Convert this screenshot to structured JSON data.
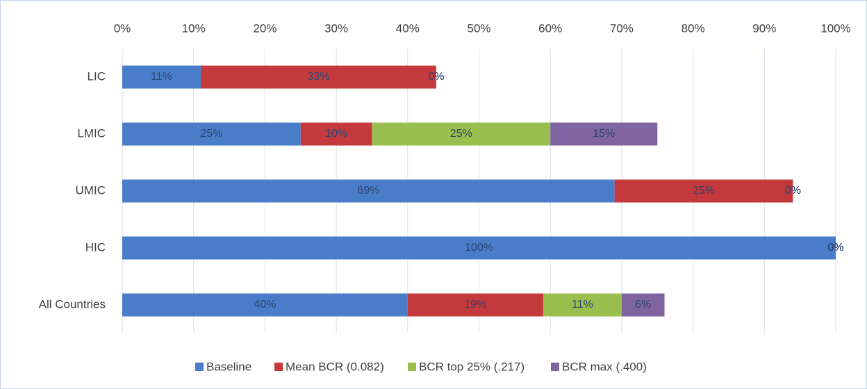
{
  "chart_data": {
    "type": "stacked-bar-horizontal",
    "categories": [
      "LIC",
      "LMIC",
      "UMIC",
      "HIC",
      "All Countries"
    ],
    "series": [
      {
        "name": "Baseline",
        "color": "#4a7dc9",
        "values": [
          11,
          25,
          69,
          100,
          40
        ],
        "value_labels": [
          "11%",
          "25%",
          "69%",
          "100%",
          "40%"
        ]
      },
      {
        "name": "Mean BCR (0.082)",
        "color": "#c43a3c",
        "values": [
          33,
          10,
          25,
          0,
          19
        ],
        "value_labels": [
          "33%",
          "10%",
          "25%",
          "0%",
          "19%"
        ]
      },
      {
        "name": "BCR top 25% (.217)",
        "color": "#9bbf4f",
        "values": [
          0,
          25,
          0,
          0,
          11
        ],
        "value_labels": [
          "0%",
          "25%",
          "0%",
          "0%",
          "11%"
        ]
      },
      {
        "name": "BCR max (.400)",
        "color": "#8064a2",
        "values": [
          0,
          15,
          0,
          0,
          6
        ],
        "value_labels": [
          "0%",
          "15%",
          "0%",
          "0%",
          "6%"
        ]
      }
    ],
    "xlim": [
      0,
      100
    ],
    "xticks": [
      {
        "value": 0,
        "label": "0%"
      },
      {
        "value": 10,
        "label": "10%"
      },
      {
        "value": 20,
        "label": "20%"
      },
      {
        "value": 30,
        "label": "30%"
      },
      {
        "value": 40,
        "label": "40%"
      },
      {
        "value": 50,
        "label": "50%"
      },
      {
        "value": 60,
        "label": "60%"
      },
      {
        "value": 70,
        "label": "70%"
      },
      {
        "value": 80,
        "label": "80%"
      },
      {
        "value": 90,
        "label": "90%"
      },
      {
        "value": 100,
        "label": "100%"
      }
    ],
    "grid": true,
    "legend": "bottom"
  }
}
